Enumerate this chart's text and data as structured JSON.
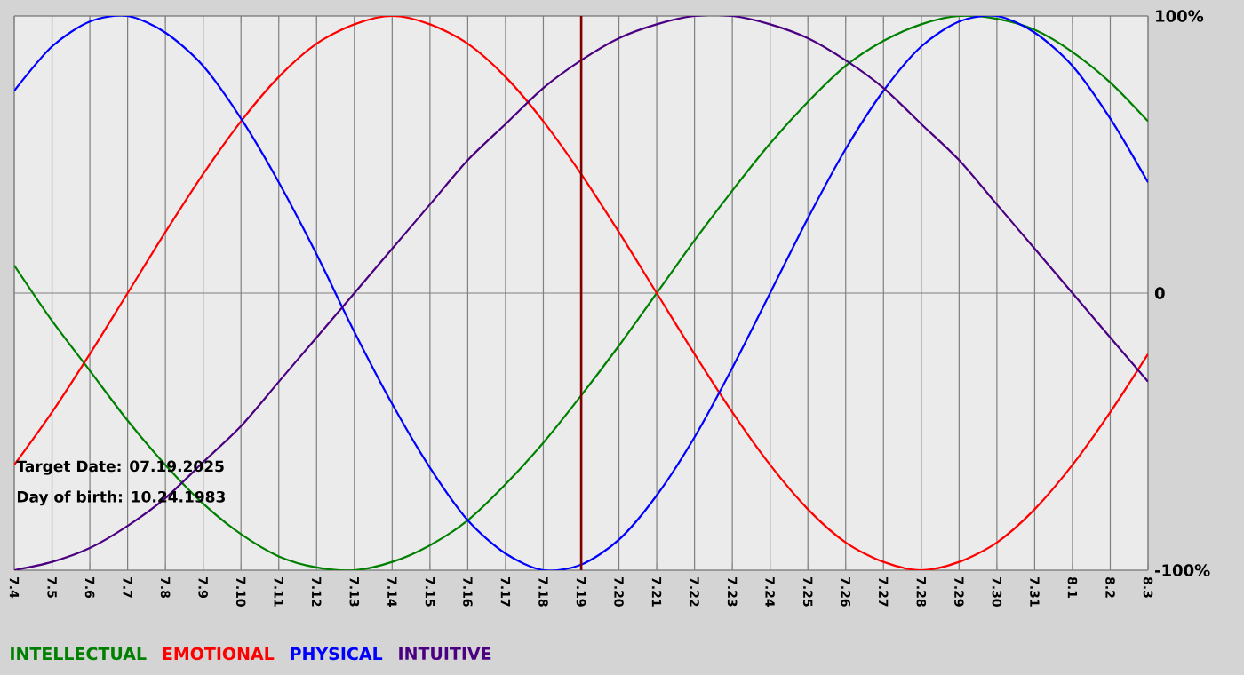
{
  "chart_data": {
    "type": "line",
    "categories": [
      "7.4",
      "7.5",
      "7.6",
      "7.7",
      "7.8",
      "7.9",
      "7.10",
      "7.11",
      "7.12",
      "7.13",
      "7.14",
      "7.15",
      "7.16",
      "7.17",
      "7.18",
      "7.19",
      "7.20",
      "7.21",
      "7.22",
      "7.23",
      "7.24",
      "7.25",
      "7.26",
      "7.27",
      "7.28",
      "7.29",
      "7.30",
      "7.31",
      "8.1",
      "8.2",
      "8.3"
    ],
    "series": [
      {
        "name": "INTELLECTUAL",
        "color": "#008000",
        "values": [
          10,
          -10,
          -28,
          -46,
          -62,
          -76,
          -87,
          -95,
          -99,
          -100,
          -97,
          -91,
          -82,
          -69,
          -54,
          -37,
          -19,
          0,
          19,
          37,
          54,
          69,
          82,
          91,
          97,
          100,
          99,
          95,
          87,
          76,
          62
        ]
      },
      {
        "name": "EMOTIONAL",
        "color": "#ff0000",
        "values": [
          -62,
          -43,
          -22,
          0,
          22,
          43,
          62,
          78,
          90,
          97,
          100,
          97,
          90,
          78,
          62,
          43,
          22,
          0,
          -22,
          -43,
          -62,
          -78,
          -90,
          -97,
          -100,
          -97,
          -90,
          -78,
          -62,
          -43,
          -22
        ]
      },
      {
        "name": "PHYSICAL",
        "color": "#0000ff",
        "values": [
          73,
          89,
          98,
          100,
          94,
          82,
          63,
          40,
          14,
          -14,
          -40,
          -63,
          -82,
          -94,
          -100,
          -98,
          -89,
          -73,
          -52,
          -27,
          0,
          27,
          52,
          73,
          89,
          98,
          100,
          94,
          82,
          63,
          40
        ]
      },
      {
        "name": "INTUITIVE",
        "color": "#4b0082",
        "values": [
          -100,
          -97,
          -92,
          -84,
          -74,
          -61,
          -48,
          -32,
          -16,
          0,
          16,
          32,
          48,
          61,
          74,
          84,
          92,
          97,
          100,
          100,
          97,
          92,
          84,
          74,
          61,
          48,
          32,
          16,
          0,
          -16,
          -32
        ]
      }
    ],
    "ylim": [
      -100,
      100
    ],
    "yticks": [
      {
        "value": 100,
        "label": "100%"
      },
      0,
      {
        "value": -100,
        "label": "-100%"
      }
    ],
    "grid": true,
    "legend": "bottom left",
    "ref_lines": [
      {
        "axis": "x",
        "value": "7.19",
        "color": "#800000"
      }
    ],
    "annotations": [
      "Target Date: 07.19.2025",
      "Day of birth: 10.24.1983"
    ]
  }
}
